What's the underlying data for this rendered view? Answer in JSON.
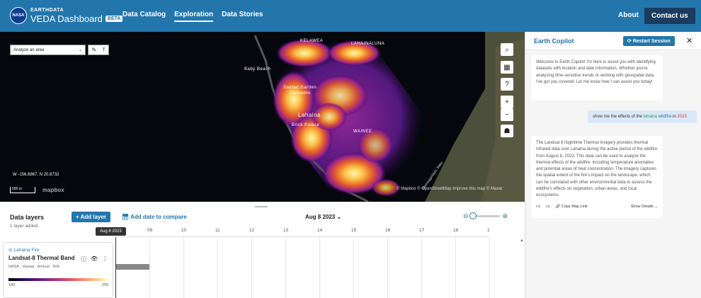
{
  "header": {
    "brand_top": "EARTHDATA",
    "brand_main": "VEDA Dashboard",
    "beta": "BETA",
    "nav": [
      "Data Catalog",
      "Exploration",
      "Data Stories"
    ],
    "about": "About",
    "contact": "Contact us"
  },
  "map": {
    "analyze_select": "Analyze an area",
    "coords": "W -156.6867, N 20.8732",
    "scale": "500 m",
    "mapbox": "mapbox",
    "attribution": "© Mapbox © OpenStreetMap  Improve this map  © Maxar",
    "labels": {
      "kelawea": "KELAWEA",
      "lahainaluna": "LAHAINALUNA",
      "baby_beach": "Baby Beach",
      "sacred_garden": "Sacred Garden",
      "turntable": "Turntable",
      "lahaina": "Lahaina",
      "brick_palace": "Brick Palace",
      "waine": "WAINEE",
      "hwy": "Honoapiilani Hwy"
    }
  },
  "panel": {
    "title": "Earth Copilot",
    "restart": "Restart Session",
    "welcome": "Welcome to Earth Copilot! I'm here to assist you with identifying datasets with location and date information. Whether you're analyzing time-sensitive trends or working with geospatial data, I've got you covered. Let me know how I can assist you today!",
    "user_msg_a": "show me the effects of the",
    "user_msg_place": "lahaina",
    "user_msg_event": "wildfire",
    "user_msg_in": "in",
    "user_msg_year": "2023",
    "answer": "The Landsat 8 Nighttime Thermal Imagery provides thermal infrared data over Lahaina during the active period of the wildfire from August 8, 2023. This data can be used to analyze the thermal effects of the wildfire, including temperature anomalies and potential areas of heat concentration. The imagery captures the spatial extent of the fire's impact on the landscape, which can be correlated with other environmental data to assess the wildfire's effects on vegetation, urban areas, and local ecosystems.",
    "copy_link": "Copy Map Link",
    "show_details": "Show Details"
  },
  "timeline": {
    "data_layers": "Data layers",
    "layers_added": "1 layer added",
    "add_layer": "+ Add layer",
    "add_date": "Add date to compare",
    "date": "Aug 8 2023",
    "date_tag": "Aug 8 2023",
    "ticks": [
      "09",
      "10",
      "11",
      "12",
      "13",
      "14",
      "15",
      "16",
      "17",
      "18",
      "1"
    ]
  },
  "layer_card": {
    "source": "Lahaina Fire",
    "title": "Landsat-8 Thermal Band",
    "meta": "NASA · Hawaii · Annual · N/A",
    "min": "180",
    "max": "255"
  }
}
